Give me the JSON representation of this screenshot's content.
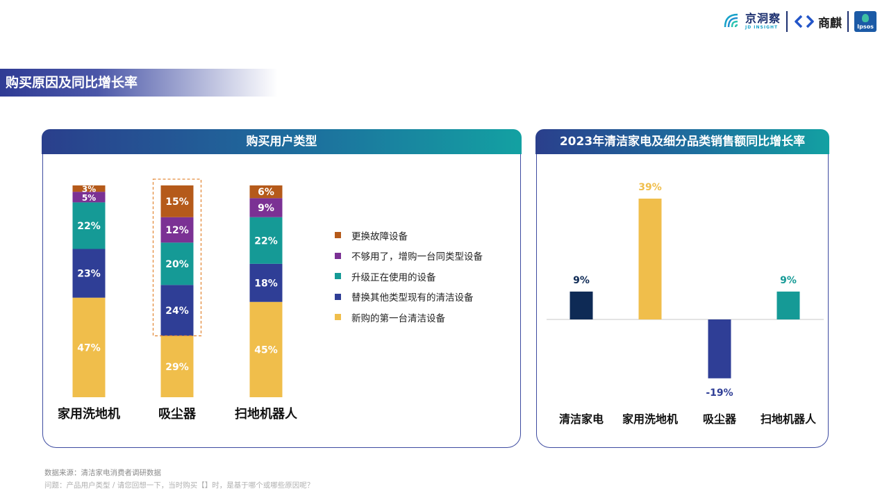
{
  "brand": {
    "jd_name": "京洞察",
    "jd_sub": "JD INSIGHT",
    "sq_name": "商麒",
    "ipsos": "Ipsos"
  },
  "section_title": "购买原因及同比增长率",
  "left_panel": {
    "title": "购买用户类型"
  },
  "right_panel": {
    "title": "2023年清洁家电及细分品类销售额同比增长率"
  },
  "colors": {
    "replace_broken": "#b55a1a",
    "add_same_type": "#7b3194",
    "upgrade": "#159a96",
    "replace_other": "#2f3e96",
    "first_purchase": "#f0be4b",
    "cleaning_total": "#0e2a55",
    "highlight_border": "#e48a3a"
  },
  "chart_data": [
    {
      "type": "bar",
      "stacked": true,
      "title": "购买用户类型",
      "categories": [
        "家用洗地机",
        "吸尘器",
        "扫地机器人"
      ],
      "series": [
        {
          "name": "新购的第一台清洁设备",
          "values": [
            47,
            29,
            45
          ],
          "color": "#f0be4b"
        },
        {
          "name": "替换其他类型现有的清洁设备",
          "values": [
            23,
            24,
            18
          ],
          "color": "#2f3e96"
        },
        {
          "name": "升级正在使用的设备",
          "values": [
            22,
            20,
            22
          ],
          "color": "#159a96"
        },
        {
          "name": "不够用了，增购一台同类型设备",
          "values": [
            5,
            12,
            9
          ],
          "color": "#7b3194"
        },
        {
          "name": "更换故障设备",
          "values": [
            3,
            15,
            6
          ],
          "color": "#b55a1a"
        }
      ],
      "value_suffix": "%",
      "highlight_category": "吸尘器",
      "legend_order": [
        "更换故障设备",
        "不够用了，增购一台同类型设备",
        "升级正在使用的设备",
        "替换其他类型现有的清洁设备",
        "新购的第一台清洁设备"
      ],
      "legend_position": "right"
    },
    {
      "type": "bar",
      "title": "2023年清洁家电及细分品类销售额同比增长率",
      "categories": [
        "清洁家电",
        "家用洗地机",
        "吸尘器",
        "扫地机器人"
      ],
      "values": [
        9,
        39,
        -19,
        9
      ],
      "labels": [
        "9%",
        "39%",
        "-19%",
        "9%"
      ],
      "colors": [
        "#0e2a55",
        "#f0be4b",
        "#2f3e96",
        "#159a96"
      ]
    }
  ],
  "footnotes": {
    "source": "数据来源：清洁家电消费者调研数据",
    "question": "问题：产品用户类型 / 请您回想一下，当时购买【】时，是基于哪个或哪些原因呢？"
  }
}
